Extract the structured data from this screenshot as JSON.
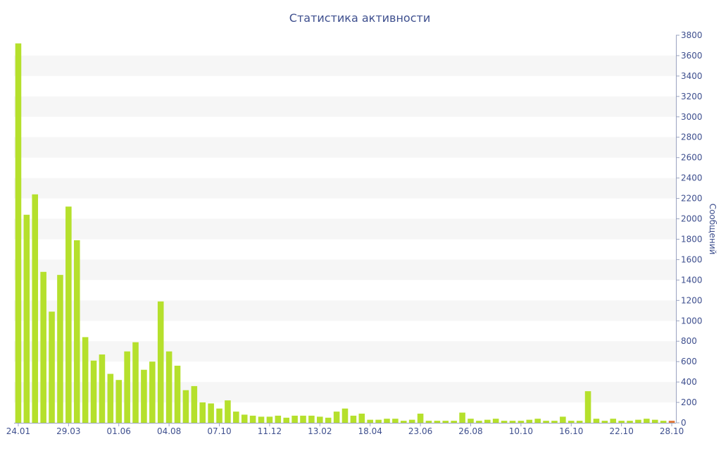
{
  "chart_data": {
    "type": "bar",
    "title": "Статистика активности",
    "ylabel": "Сообщений",
    "xlabel": "",
    "ylim": [
      0,
      3800
    ],
    "y_ticks": [
      0,
      200,
      400,
      600,
      800,
      1000,
      1200,
      1400,
      1600,
      1800,
      2000,
      2200,
      2400,
      2600,
      2800,
      3000,
      3200,
      3400,
      3600,
      3800
    ],
    "x_tick_labels": [
      {
        "index": 0,
        "label": "24.01"
      },
      {
        "index": 6,
        "label": "29.03"
      },
      {
        "index": 12,
        "label": "01.06"
      },
      {
        "index": 18,
        "label": "04.08"
      },
      {
        "index": 24,
        "label": "07.10"
      },
      {
        "index": 30,
        "label": "11.12"
      },
      {
        "index": 36,
        "label": "13.02"
      },
      {
        "index": 42,
        "label": "18.04"
      },
      {
        "index": 48,
        "label": "23.06"
      },
      {
        "index": 54,
        "label": "26.08"
      },
      {
        "index": 60,
        "label": "10.10"
      },
      {
        "index": 66,
        "label": "16.10"
      },
      {
        "index": 72,
        "label": "22.10"
      },
      {
        "index": 78,
        "label": "28.10"
      }
    ],
    "y_axis_position": "right",
    "grid": "alternating horizontal bands",
    "bar_color": "#b5e02c",
    "last_bar_color": "#e07a3a",
    "values": [
      3720,
      2040,
      2240,
      1480,
      1090,
      1450,
      2120,
      1790,
      840,
      610,
      670,
      480,
      420,
      700,
      790,
      520,
      600,
      1190,
      700,
      560,
      320,
      360,
      200,
      190,
      140,
      220,
      110,
      80,
      70,
      60,
      60,
      70,
      50,
      70,
      70,
      70,
      60,
      50,
      110,
      140,
      70,
      90,
      30,
      30,
      40,
      40,
      20,
      30,
      90,
      20,
      20,
      20,
      20,
      100,
      40,
      20,
      30,
      40,
      20,
      20,
      20,
      30,
      40,
      20,
      20,
      60,
      20,
      20,
      310,
      40,
      20,
      40,
      20,
      20,
      30,
      40,
      30,
      20,
      20
    ]
  }
}
